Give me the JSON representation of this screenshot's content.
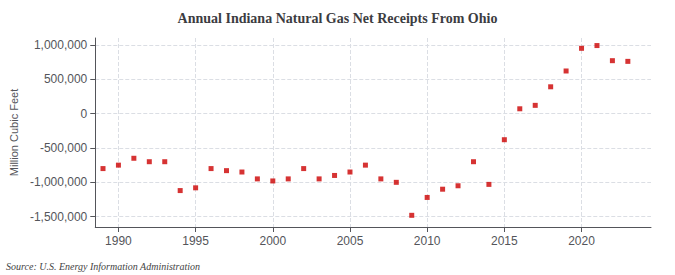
{
  "chart_data": {
    "type": "scatter",
    "title": "Annual Indiana Natural Gas Net Receipts From Ohio",
    "ylabel": "Million Cubic Feet",
    "annotations": [
      "Source: U.S. Energy Information Administration"
    ],
    "color": "#cc0000",
    "marker": "square",
    "grid": true,
    "xlim": [
      1988.5,
      2024.5
    ],
    "xticks": [
      1990,
      1995,
      2000,
      2005,
      2010,
      2015,
      2020
    ],
    "ylim": [
      -1650000,
      1100000
    ],
    "yticks": [
      {
        "value": -1500000,
        "label": "-1,500,000"
      },
      {
        "value": -1000000,
        "label": "-1,000,000"
      },
      {
        "value": -500000,
        "label": "-500,000"
      },
      0,
      {
        "value": 500000,
        "label": "500,000"
      },
      {
        "value": 1000000,
        "label": "1,000,000"
      }
    ],
    "x": [
      1989,
      1990,
      1991,
      1992,
      1993,
      1994,
      1995,
      1996,
      1997,
      1998,
      1999,
      2000,
      2001,
      2002,
      2003,
      2004,
      2005,
      2006,
      2007,
      2008,
      2009,
      2010,
      2011,
      2012,
      2013,
      2014,
      2015,
      2016,
      2017,
      2018,
      2019,
      2020,
      2021,
      2022,
      2023
    ],
    "values": [
      -800000,
      -750000,
      -650000,
      -700000,
      -700000,
      -1120000,
      -1080000,
      -800000,
      -830000,
      -850000,
      -950000,
      -980000,
      -950000,
      -800000,
      -950000,
      -900000,
      -850000,
      -750000,
      -950000,
      -1000000,
      -1480000,
      -1220000,
      -1100000,
      -1050000,
      -700000,
      -1030000,
      -380000,
      70000,
      120000,
      390000,
      620000,
      950000,
      990000,
      770000,
      760000
    ]
  }
}
